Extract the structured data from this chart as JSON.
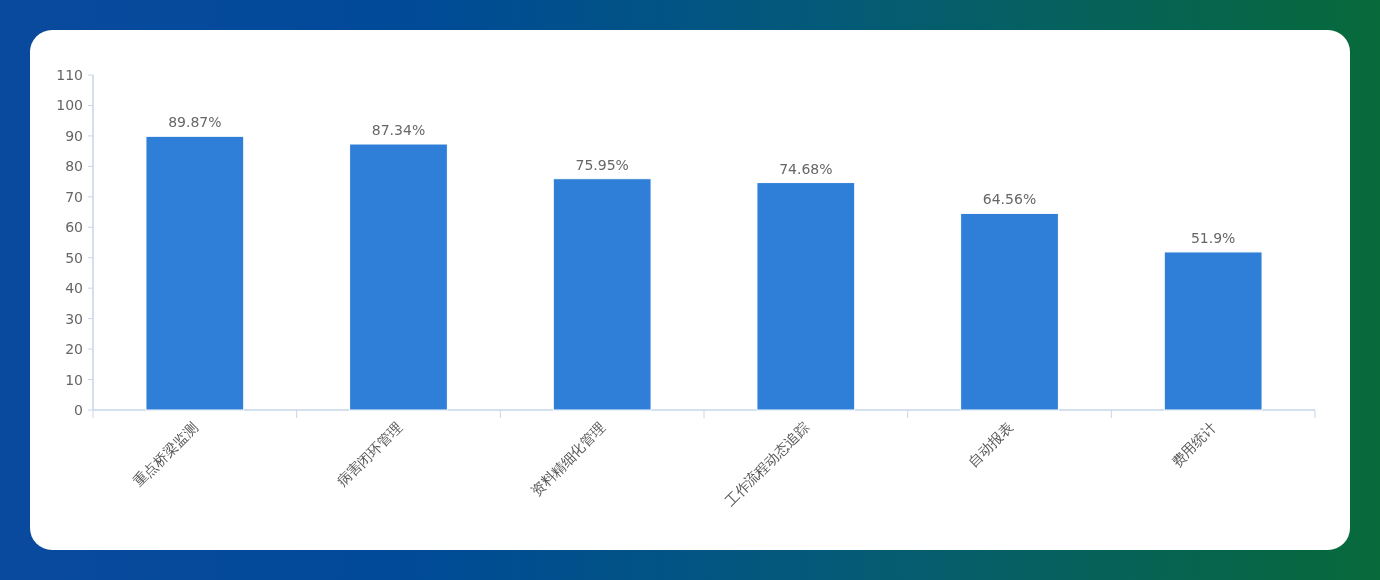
{
  "chart_data": {
    "type": "bar",
    "categories": [
      "重点桥梁监测",
      "病害闭环管理",
      "资料精细化管理",
      "工作流程动态追踪",
      "自动报表",
      "费用统计"
    ],
    "values": [
      89.87,
      87.34,
      75.95,
      74.68,
      64.56,
      51.9
    ],
    "value_labels": [
      "89.87%",
      "87.34%",
      "75.95%",
      "74.68%",
      "64.56%",
      "51.9%"
    ],
    "color": "#2f7ed8",
    "ylim": [
      0,
      110
    ],
    "yticks": [
      0,
      10,
      20,
      30,
      40,
      50,
      60,
      70,
      80,
      90,
      100,
      110
    ],
    "grid": false
  }
}
